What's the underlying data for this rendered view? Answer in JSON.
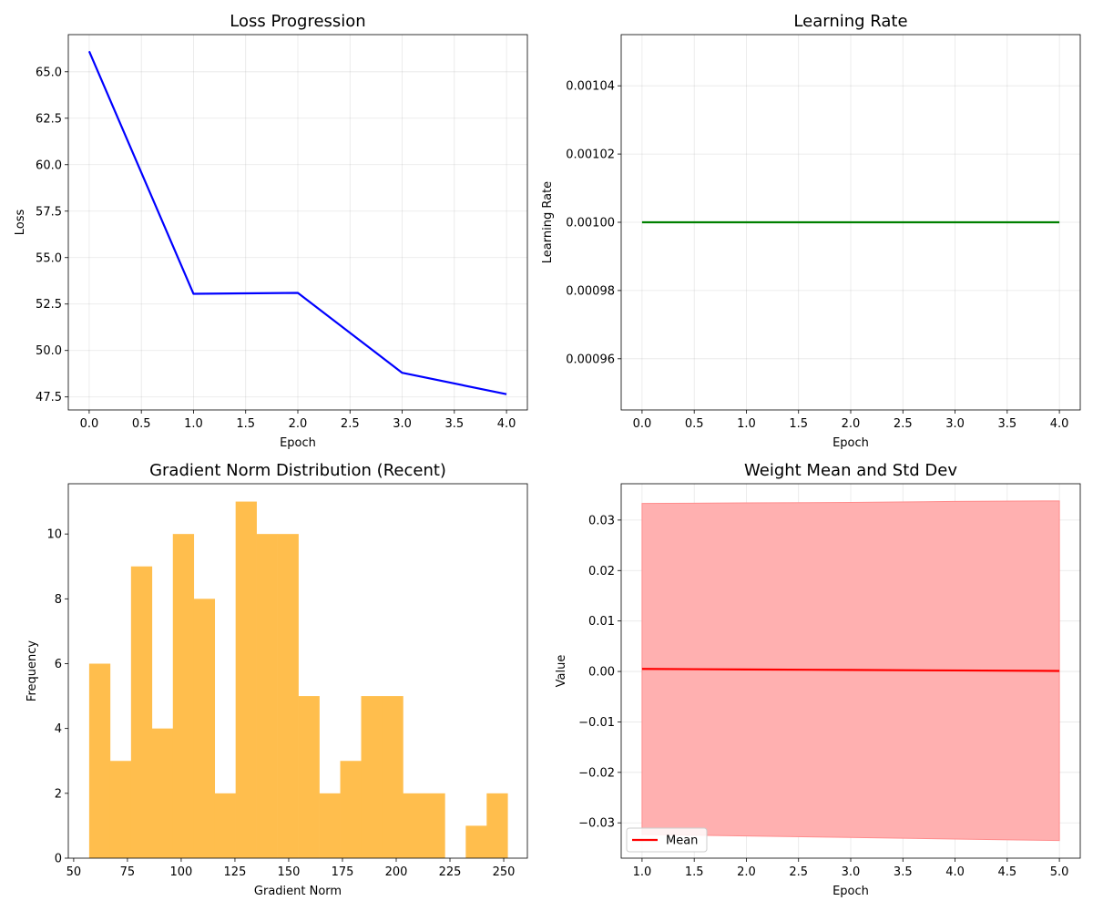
{
  "colors": {
    "loss_line": "#0000ff",
    "lr_line": "#008000",
    "hist_bar": "#ffbe4d",
    "mean_line": "#ff0000",
    "band_fill": "#ffb0b0",
    "band_edge": "#ff8c8c"
  },
  "chart_data": [
    {
      "type": "line",
      "title": "Loss Progression",
      "xlabel": "Epoch",
      "ylabel": "Loss",
      "grid": true,
      "xlim": [
        -0.2,
        4.2
      ],
      "ylim": [
        46.8,
        67.0
      ],
      "xticks": [
        0,
        0.5,
        1,
        1.5,
        2,
        2.5,
        3,
        3.5,
        4
      ],
      "xtick_labels": [
        "0.0",
        "0.5",
        "1.0",
        "1.5",
        "2.0",
        "2.5",
        "3.0",
        "3.5",
        "4.0"
      ],
      "yticks": [
        47.5,
        50,
        52.5,
        55,
        57.5,
        60,
        62.5,
        65
      ],
      "ytick_labels": [
        "47.5",
        "50.0",
        "52.5",
        "55.0",
        "57.5",
        "60.0",
        "62.5",
        "65.0"
      ],
      "series": [
        {
          "x": [
            0,
            1,
            2,
            3,
            4
          ],
          "values": [
            66.1,
            53.05,
            53.1,
            48.8,
            47.65
          ]
        }
      ]
    },
    {
      "type": "line",
      "title": "Learning Rate",
      "xlabel": "Epoch",
      "ylabel": "Learning Rate",
      "grid": true,
      "xlim": [
        -0.2,
        4.2
      ],
      "ylim": [
        0.000945,
        0.001055
      ],
      "xticks": [
        0,
        0.5,
        1,
        1.5,
        2,
        2.5,
        3,
        3.5,
        4
      ],
      "xtick_labels": [
        "0.0",
        "0.5",
        "1.0",
        "1.5",
        "2.0",
        "2.5",
        "3.0",
        "3.5",
        "4.0"
      ],
      "yticks": [
        0.00096,
        0.00098,
        0.001,
        0.00102,
        0.00104
      ],
      "ytick_labels": [
        "0.00096",
        "0.00098",
        "0.00100",
        "0.00102",
        "0.00104"
      ],
      "series": [
        {
          "x": [
            0,
            1,
            2,
            3,
            4
          ],
          "values": [
            0.001,
            0.001,
            0.001,
            0.001,
            0.001
          ]
        }
      ]
    },
    {
      "type": "bar",
      "title": "Gradient Norm Distribution (Recent)",
      "xlabel": "Gradient Norm",
      "ylabel": "Frequency",
      "grid": false,
      "xlim": [
        47.5,
        261.0
      ],
      "ylim": [
        0,
        11.55
      ],
      "xticks": [
        50,
        75,
        100,
        125,
        150,
        175,
        200,
        225,
        250
      ],
      "xtick_labels": [
        "50",
        "75",
        "100",
        "125",
        "150",
        "175",
        "200",
        "225",
        "250"
      ],
      "yticks": [
        0,
        2,
        4,
        6,
        8,
        10
      ],
      "ytick_labels": [
        "0",
        "2",
        "4",
        "6",
        "8",
        "10"
      ],
      "bin_start": 57.2,
      "bin_width": 9.73,
      "values": [
        6,
        3,
        9,
        4,
        10,
        8,
        2,
        11,
        10,
        10,
        5,
        2,
        3,
        5,
        5,
        2,
        2,
        0,
        1,
        2
      ]
    },
    {
      "type": "area",
      "title": "Weight Mean and Std Dev",
      "xlabel": "Epoch",
      "ylabel": "Value",
      "grid": true,
      "legend": "lower-left",
      "xlim": [
        0.8,
        5.2
      ],
      "ylim": [
        -0.037,
        0.0372
      ],
      "xticks": [
        1,
        1.5,
        2,
        2.5,
        3,
        3.5,
        4,
        4.5,
        5
      ],
      "xtick_labels": [
        "1.0",
        "1.5",
        "2.0",
        "2.5",
        "3.0",
        "3.5",
        "4.0",
        "4.5",
        "5.0"
      ],
      "yticks": [
        -0.03,
        -0.02,
        -0.01,
        0,
        0.01,
        0.02,
        0.03
      ],
      "ytick_labels": [
        "−0.03",
        "−0.02",
        "−0.01",
        "0.00",
        "0.01",
        "0.02",
        "0.03"
      ],
      "x": [
        1,
        2,
        3,
        4,
        5
      ],
      "series": [
        {
          "name": "Mean",
          "values": [
            0.0005,
            0.0004,
            0.0003,
            0.0002,
            0.0001
          ]
        }
      ],
      "upper": [
        0.0333,
        0.0334,
        0.0335,
        0.0337,
        0.0338
      ],
      "lower": [
        -0.0323,
        -0.0326,
        -0.0329,
        -0.0332,
        -0.0335
      ]
    }
  ]
}
